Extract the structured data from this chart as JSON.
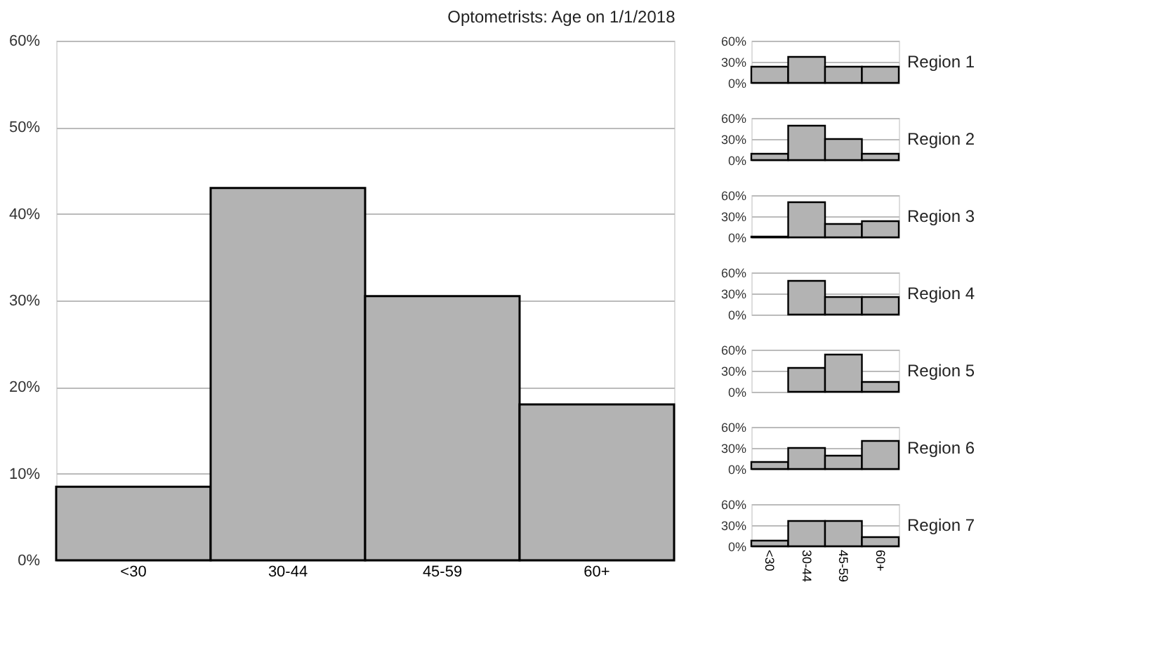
{
  "chart_data": [
    {
      "type": "bar",
      "title": "Optometrists: Age on 1/1/2018",
      "categories": [
        "<30",
        "30-44",
        "45-59",
        "60+"
      ],
      "values": [
        8.5,
        43,
        30.5,
        18
      ],
      "color": "#b3b3b3",
      "ylim": [
        0,
        60
      ],
      "yticks": [
        {
          "value": 0,
          "label": "0%"
        },
        {
          "value": 10,
          "label": "10%"
        },
        {
          "value": 20,
          "label": "20%"
        },
        {
          "value": 30,
          "label": "30%"
        },
        {
          "value": 40,
          "label": "40%"
        },
        {
          "value": 50,
          "label": "50%"
        },
        {
          "value": 60,
          "label": "60%"
        }
      ],
      "grid": "y"
    },
    {
      "type": "bar",
      "title": "Region 1",
      "categories": [
        null,
        null,
        null,
        null
      ],
      "values": [
        23,
        37,
        23,
        23
      ],
      "color": "#b3b3b3",
      "ylim": [
        0,
        60
      ],
      "yticks": [
        {
          "value": 0,
          "label": "0%"
        },
        {
          "value": 30,
          "label": "30%"
        },
        {
          "value": 60,
          "label": "60%"
        }
      ],
      "grid": "y",
      "tick_labels": "y"
    },
    {
      "type": "bar",
      "title": "Region 2",
      "categories": [
        null,
        null,
        null,
        null
      ],
      "values": [
        9,
        49,
        30,
        9
      ],
      "color": "#b3b3b3",
      "ylim": [
        0,
        60
      ],
      "yticks": [
        {
          "value": 0,
          "label": "0%"
        },
        {
          "value": 30,
          "label": "30%"
        },
        {
          "value": 60,
          "label": "60%"
        }
      ],
      "grid": "y",
      "tick_labels": "y"
    },
    {
      "type": "bar",
      "title": "Region 3",
      "categories": [
        null,
        null,
        null,
        null
      ],
      "values": [
        1,
        50,
        19,
        23
      ],
      "color": "#b3b3b3",
      "ylim": [
        0,
        60
      ],
      "yticks": [
        {
          "value": 0,
          "label": "0%"
        },
        {
          "value": 30,
          "label": "30%"
        },
        {
          "value": 60,
          "label": "60%"
        }
      ],
      "grid": "y",
      "tick_labels": "y"
    },
    {
      "type": "bar",
      "title": "Region 4",
      "categories": [
        null,
        null,
        null,
        null
      ],
      "values": [
        0,
        48,
        25,
        25
      ],
      "color": "#b3b3b3",
      "ylim": [
        0,
        60
      ],
      "yticks": [
        {
          "value": 0,
          "label": "0%"
        },
        {
          "value": 30,
          "label": "30%"
        },
        {
          "value": 60,
          "label": "60%"
        }
      ],
      "grid": "y",
      "tick_labels": "y"
    },
    {
      "type": "bar",
      "title": "Region 5",
      "categories": [
        null,
        null,
        null,
        null
      ],
      "values": [
        0,
        34,
        53,
        14
      ],
      "color": "#b3b3b3",
      "ylim": [
        0,
        60
      ],
      "yticks": [
        {
          "value": 0,
          "label": "0%"
        },
        {
          "value": 30,
          "label": "30%"
        },
        {
          "value": 60,
          "label": "60%"
        }
      ],
      "grid": "y",
      "tick_labels": "y"
    },
    {
      "type": "bar",
      "title": "Region 6",
      "categories": [
        null,
        null,
        null,
        null
      ],
      "values": [
        10,
        30,
        19,
        40
      ],
      "color": "#b3b3b3",
      "ylim": [
        0,
        60
      ],
      "yticks": [
        {
          "value": 0,
          "label": "0%"
        },
        {
          "value": 30,
          "label": "30%"
        },
        {
          "value": 60,
          "label": "60%"
        }
      ],
      "grid": "y",
      "tick_labels": "y"
    },
    {
      "type": "bar",
      "title": "Region 7",
      "categories": [
        "<30",
        "30-44",
        "45-59",
        "60+"
      ],
      "values": [
        8,
        36,
        36,
        13
      ],
      "color": "#b3b3b3",
      "ylim": [
        0,
        60
      ],
      "yticks": [
        {
          "value": 0,
          "label": "0%"
        },
        {
          "value": 30,
          "label": "30%"
        },
        {
          "value": 60,
          "label": "60%"
        }
      ],
      "grid": "y"
    }
  ]
}
